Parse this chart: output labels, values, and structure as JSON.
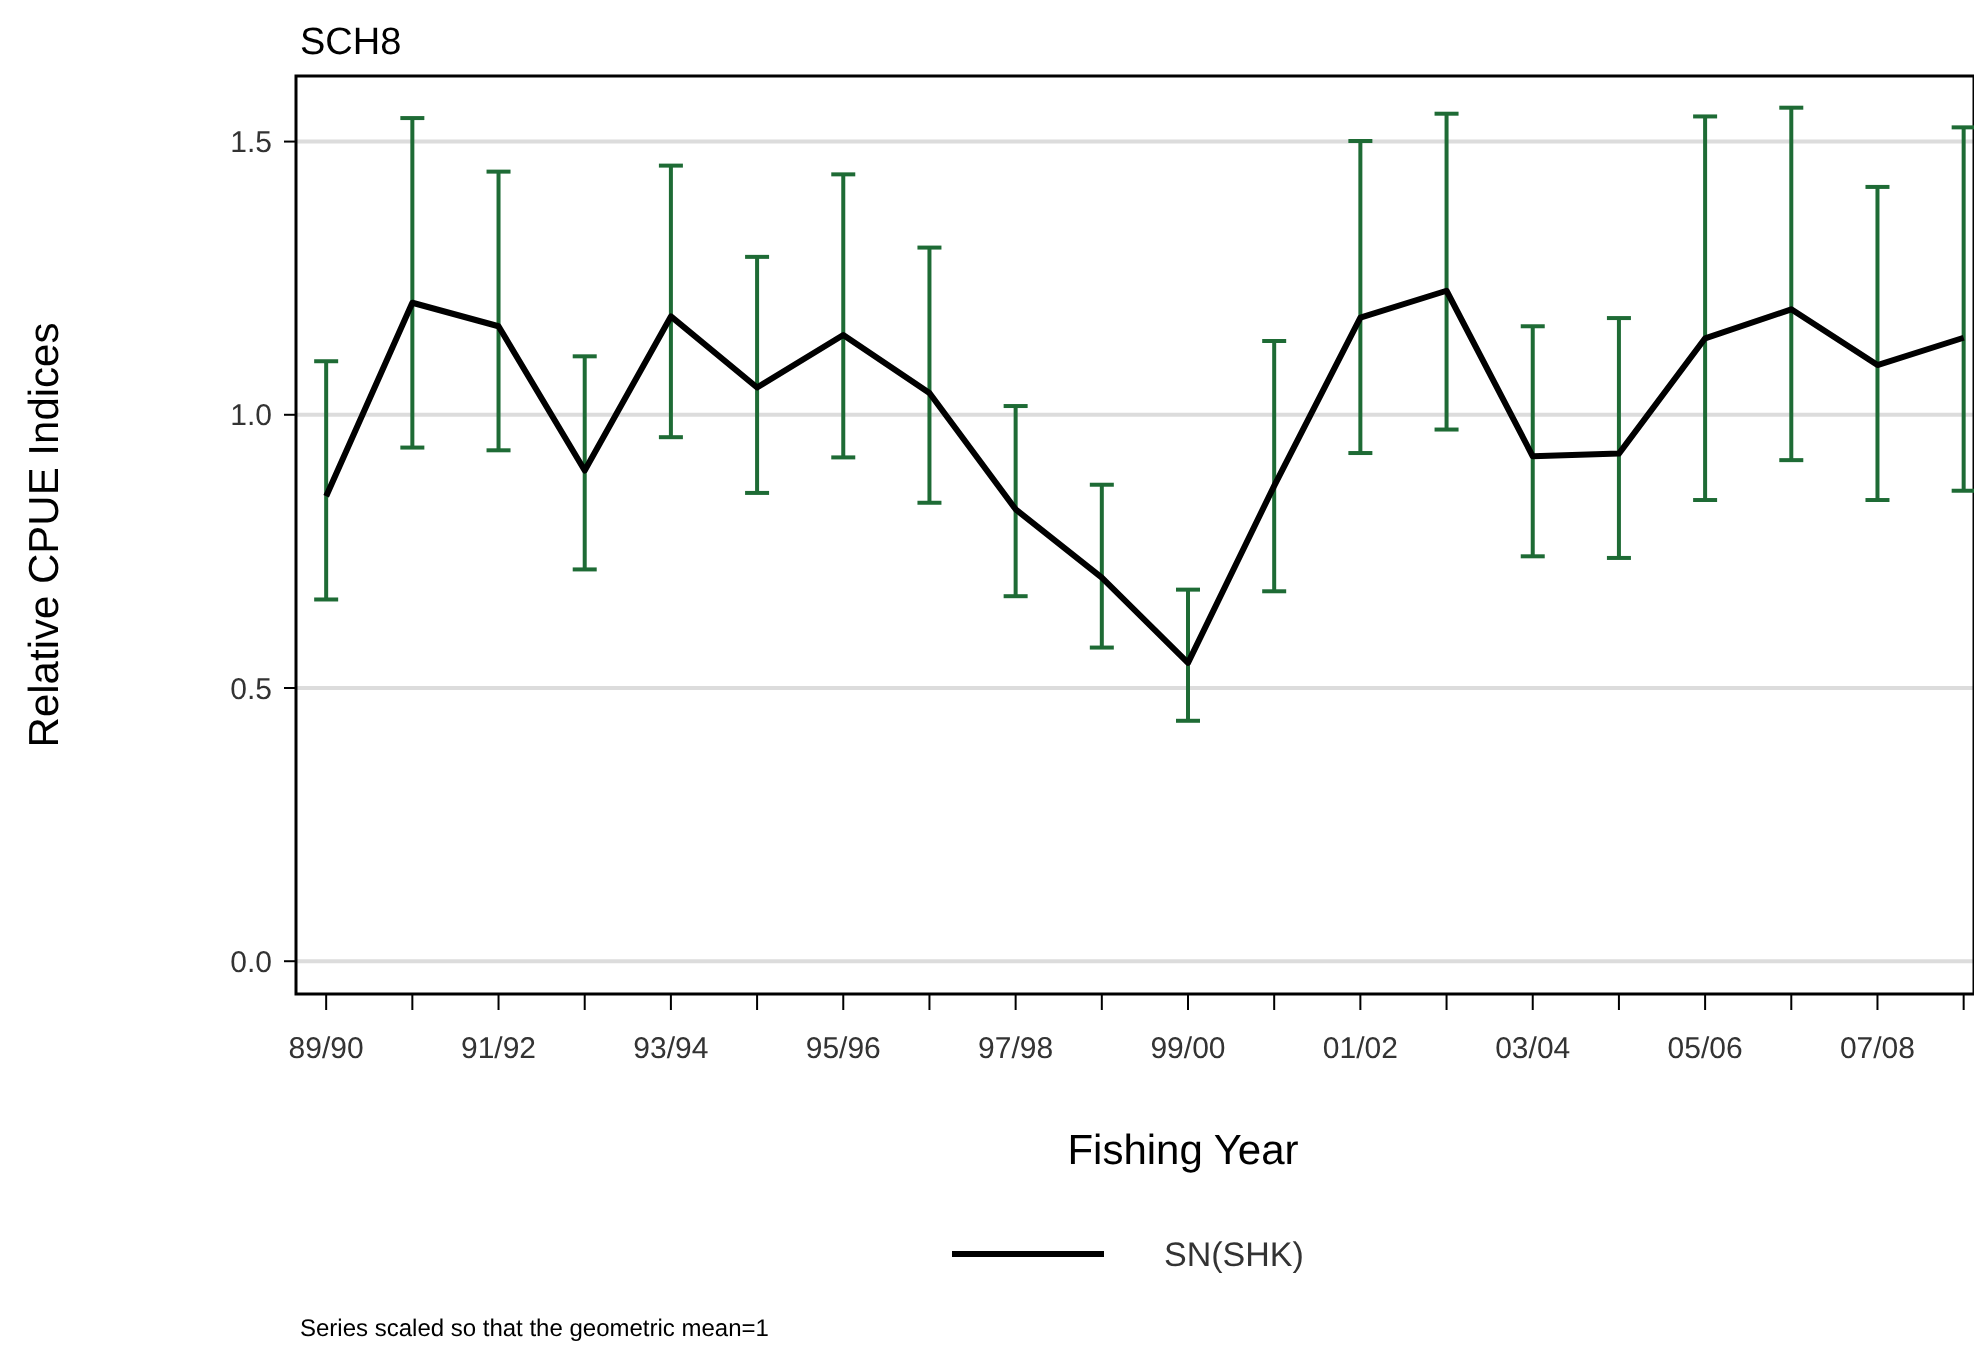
{
  "chart_data": {
    "type": "line",
    "title": "SCH8",
    "xlabel": "Fishing Year",
    "ylabel": "Relative CPUE Indices",
    "annotations": [
      "Series scaled so that the geometric mean=1"
    ],
    "categories": [
      "89/90",
      null,
      "91/92",
      null,
      "93/94",
      null,
      "95/96",
      null,
      "97/98",
      null,
      "99/00",
      null,
      "01/02",
      null,
      "03/04",
      null,
      "05/06",
      null,
      "07/08",
      null
    ],
    "series": [
      {
        "name": "SN(SHK)",
        "color": "#000000",
        "values": [
          0.851,
          1.205,
          1.162,
          0.898,
          1.18,
          1.05,
          1.146,
          1.04,
          0.827,
          0.702,
          0.546,
          0.87,
          1.178,
          1.227,
          0.924,
          0.929,
          1.14,
          1.193,
          1.091,
          1.141
        ],
        "errors": [
          [
            0.662,
            1.098
          ],
          [
            0.94,
            1.543
          ],
          [
            0.935,
            1.445
          ],
          [
            0.717,
            1.107
          ],
          [
            0.959,
            1.456
          ],
          [
            0.857,
            1.289
          ],
          [
            0.922,
            1.44
          ],
          [
            0.839,
            1.306
          ],
          [
            0.668,
            1.016
          ],
          [
            0.574,
            0.872
          ],
          [
            0.44,
            0.68
          ],
          [
            0.677,
            1.135
          ],
          [
            0.93,
            1.501
          ],
          [
            0.973,
            1.551
          ],
          [
            0.741,
            1.162
          ],
          [
            0.738,
            1.177
          ],
          [
            0.844,
            1.546
          ],
          [
            0.917,
            1.562
          ],
          [
            0.844,
            1.417
          ],
          [
            0.861,
            1.526
          ]
        ]
      }
    ],
    "ylim": [
      -0.06,
      1.62
    ],
    "yticks": [
      {
        "value": 0,
        "label": "0.0"
      },
      {
        "value": 0.5,
        "label": "0.5"
      },
      {
        "value": 1,
        "label": "1.0"
      },
      {
        "value": 1.5,
        "label": "1.5"
      }
    ],
    "grid": "y",
    "legend": "bottom",
    "marker": "none",
    "line_style": "solid"
  }
}
